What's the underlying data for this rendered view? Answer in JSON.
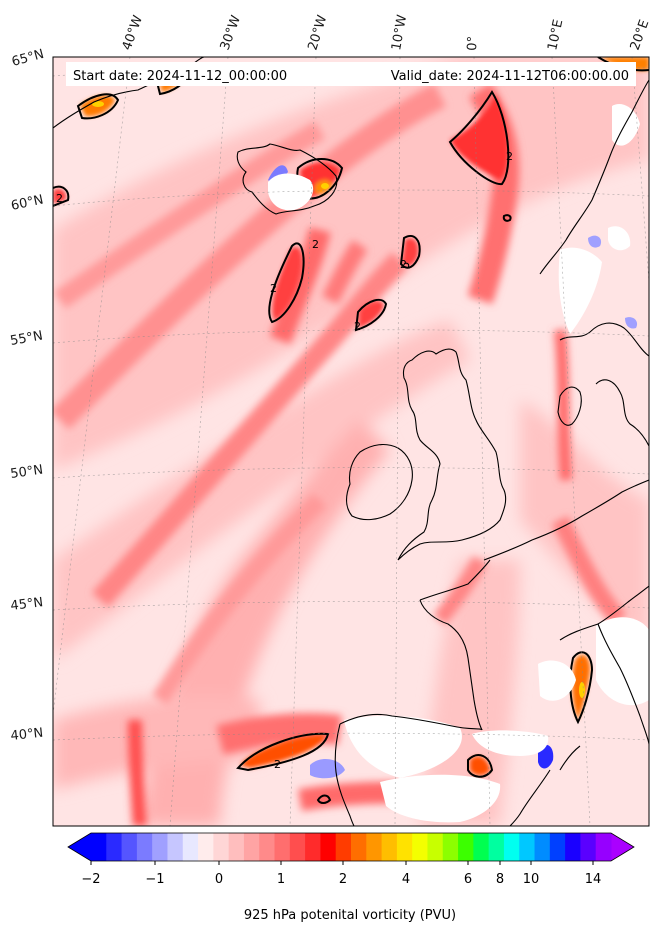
{
  "map": {
    "start_date": "Start date: 2024-11-12_00:00:00",
    "valid_date": "Valid_date: 2024-11-12T06:00:00.00",
    "longitude_labels": [
      "40°W",
      "30°W",
      "20°W",
      "10°W",
      "0°",
      "10°E",
      "20°E"
    ],
    "latitude_labels": [
      "65°N",
      "60°N",
      "55°N",
      "50°N",
      "45°N",
      "40°N"
    ],
    "contour_labels": [
      "2",
      "2",
      "2",
      "2",
      "2",
      "2",
      "2"
    ],
    "field_colors": {
      "background": "#ffe4e4",
      "light": "#ffc4c4",
      "medium": "#ff8c8c",
      "strong": "#ff4a4a",
      "max": "#ff2020",
      "orange": "#ff8c00",
      "yellow": "#ffd000",
      "blue": "#7b7bff",
      "land_mask": "#ffffff",
      "coastline": "#000000"
    }
  },
  "colorbar": {
    "label": "925 hPa potenital vorticity (PVU)",
    "tick_labels": [
      "−2",
      "−1",
      "0",
      "1",
      "2",
      "4",
      "6",
      "8",
      "10",
      "14"
    ],
    "colors": [
      "#0000ff",
      "#2a2aff",
      "#5555ff",
      "#7b7bff",
      "#a0a0ff",
      "#c6c6ff",
      "#e8e8ff",
      "#ffecec",
      "#ffd6d6",
      "#ffbebe",
      "#ffa4a4",
      "#ff8a8a",
      "#ff6e6e",
      "#ff4e4e",
      "#ff2b2b",
      "#ff0000",
      "#ff3c00",
      "#ff6e00",
      "#ff9600",
      "#ffbe00",
      "#ffe200",
      "#f4ff00",
      "#c8ff00",
      "#8cff00",
      "#3cff00",
      "#00ff50",
      "#00ffa0",
      "#00fff0",
      "#00c8ff",
      "#008cff",
      "#0040ff",
      "#1a00ff",
      "#5a00ff",
      "#9600ff"
    ],
    "extend_under_color": "#0000ff",
    "extend_over_color": "#aa00ff"
  }
}
